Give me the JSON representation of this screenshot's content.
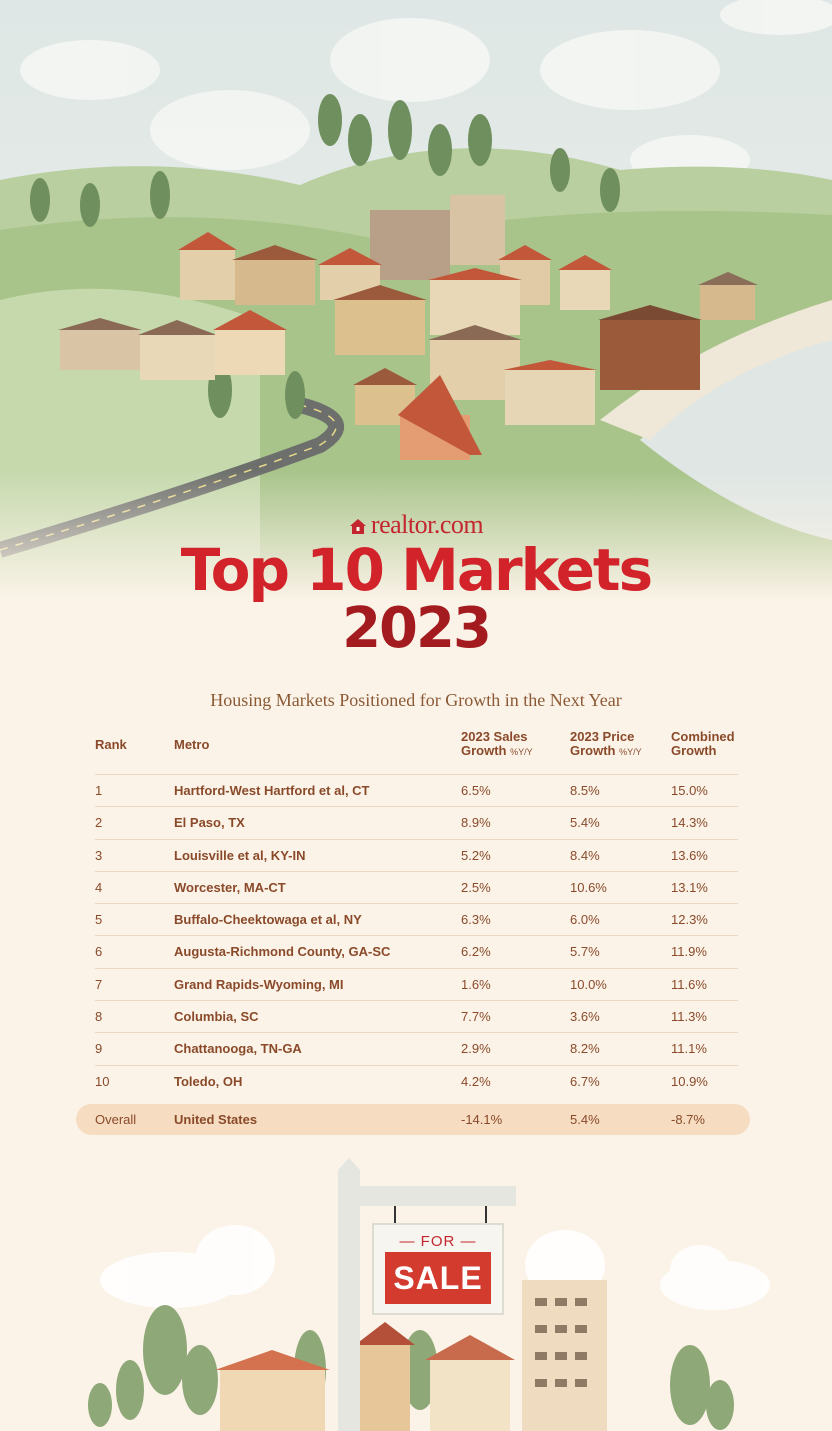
{
  "brand": {
    "logo_text": "realtor.com"
  },
  "title": {
    "line1": "Top 10 Markets",
    "line2": "2023"
  },
  "subtitle": "Housing Markets Positioned for Growth in the Next Year",
  "table": {
    "headers": {
      "rank": "Rank",
      "metro": "Metro",
      "sales_line1": "2023 Sales",
      "sales_line2": "Growth",
      "sales_unit": "%Y/Y",
      "price_line1": "2023 Price",
      "price_line2": "Growth",
      "price_unit": "%Y/Y",
      "combined_line1": "Combined",
      "combined_line2": "Growth"
    },
    "rows": [
      {
        "rank": "1",
        "metro": "Hartford-West Hartford et al, CT",
        "sales": "6.5%",
        "price": "8.5%",
        "combined": "15.0%"
      },
      {
        "rank": "2",
        "metro": "El Paso, TX",
        "sales": "8.9%",
        "price": "5.4%",
        "combined": "14.3%"
      },
      {
        "rank": "3",
        "metro": "Louisville et al, KY-IN",
        "sales": "5.2%",
        "price": "8.4%",
        "combined": "13.6%"
      },
      {
        "rank": "4",
        "metro": "Worcester, MA-CT",
        "sales": "2.5%",
        "price": "10.6%",
        "combined": "13.1%"
      },
      {
        "rank": "5",
        "metro": "Buffalo-Cheektowaga et al, NY",
        "sales": "6.3%",
        "price": "6.0%",
        "combined": "12.3%"
      },
      {
        "rank": "6",
        "metro": "Augusta-Richmond County, GA-SC",
        "sales": "6.2%",
        "price": "5.7%",
        "combined": "11.9%"
      },
      {
        "rank": "7",
        "metro": "Grand Rapids-Wyoming, MI",
        "sales": "1.6%",
        "price": "10.0%",
        "combined": "11.6%"
      },
      {
        "rank": "8",
        "metro": "Columbia, SC",
        "sales": "7.7%",
        "price": "3.6%",
        "combined": "11.3%"
      },
      {
        "rank": "9",
        "metro": "Chattanooga, TN-GA",
        "sales": "2.9%",
        "price": "8.2%",
        "combined": "11.1%"
      },
      {
        "rank": "10",
        "metro": "Toledo, OH",
        "sales": "4.2%",
        "price": "6.7%",
        "combined": "10.9%"
      }
    ],
    "overall": {
      "rank": "Overall",
      "metro": "United States",
      "sales": "-14.1%",
      "price": "5.4%",
      "combined": "-8.7%"
    }
  },
  "sign": {
    "for": "— FOR —",
    "sale": "SALE"
  },
  "colors": {
    "brand_red": "#d2232a",
    "dark_red": "#a31b1f",
    "text_brown": "#8a4a2a",
    "background": "#fbf3e8",
    "overall_band": "#f6dcc0"
  }
}
